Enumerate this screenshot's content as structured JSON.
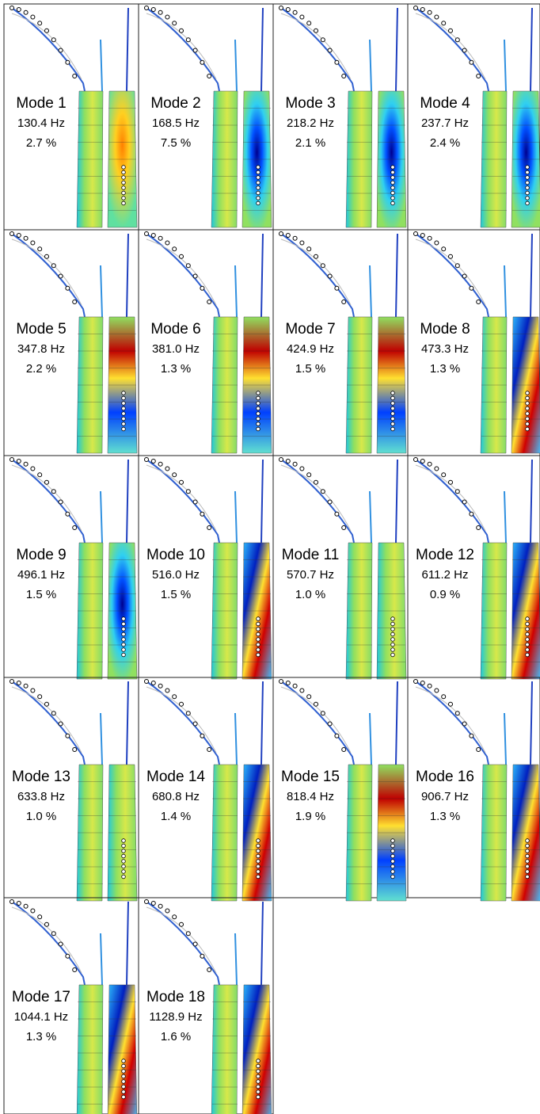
{
  "modes": [
    {
      "label": "Mode 1",
      "frequency": "130.4 Hz",
      "damping": "2.7 %"
    },
    {
      "label": "Mode 2",
      "frequency": "168.5 Hz",
      "damping": "7.5 %"
    },
    {
      "label": "Mode 3",
      "frequency": "218.2 Hz",
      "damping": "2.1 %"
    },
    {
      "label": "Mode 4",
      "frequency": "237.7 Hz",
      "damping": "2.4 %"
    },
    {
      "label": "Mode 5",
      "frequency": "347.8 Hz",
      "damping": "2.2 %"
    },
    {
      "label": "Mode 6",
      "frequency": "381.0 Hz",
      "damping": "1.3 %"
    },
    {
      "label": "Mode 7",
      "frequency": "424.9 Hz",
      "damping": "1.5 %"
    },
    {
      "label": "Mode 8",
      "frequency": "473.3 Hz",
      "damping": "1.3 %"
    },
    {
      "label": "Mode 9",
      "frequency": "496.1 Hz",
      "damping": "1.5 %"
    },
    {
      "label": "Mode 10",
      "frequency": "516.0 Hz",
      "damping": "1.5 %"
    },
    {
      "label": "Mode 11",
      "frequency": "570.7 Hz",
      "damping": "1.0 %"
    },
    {
      "label": "Mode 12",
      "frequency": "611.2 Hz",
      "damping": "0.9 %"
    },
    {
      "label": "Mode 13",
      "frequency": "633.8 Hz",
      "damping": "1.0 %"
    },
    {
      "label": "Mode 14",
      "frequency": "680.8 Hz",
      "damping": "1.4 %"
    },
    {
      "label": "Mode 15",
      "frequency": "818.4 Hz",
      "damping": "1.9 %"
    },
    {
      "label": "Mode 16",
      "frequency": "906.7 Hz",
      "damping": "1.3 %"
    },
    {
      "label": "Mode 17",
      "frequency": "1044.1 Hz",
      "damping": "1.3 %"
    },
    {
      "label": "Mode 18",
      "frequency": "1128.9 Hz",
      "damping": "1.6 %"
    }
  ]
}
